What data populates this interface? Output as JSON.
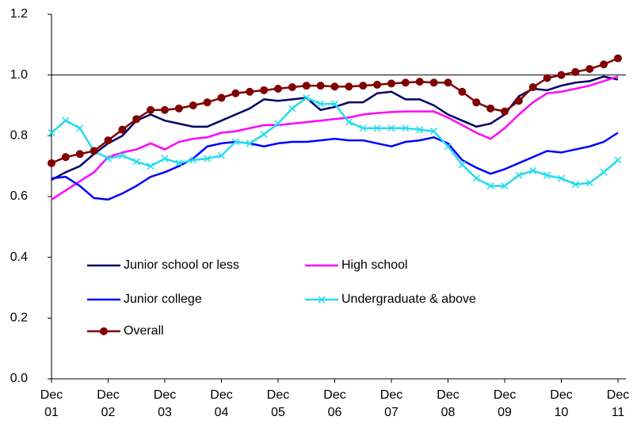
{
  "chart_data": {
    "type": "line",
    "categories": [
      "Dec 01",
      null,
      null,
      null,
      "Dec 02",
      null,
      null,
      null,
      "Dec 03",
      null,
      null,
      null,
      "Dec 04",
      null,
      null,
      null,
      "Dec 05",
      null,
      null,
      null,
      "Dec 06",
      null,
      null,
      null,
      "Dec 07",
      null,
      null,
      null,
      "Dec 08",
      null,
      null,
      null,
      "Dec 09",
      null,
      null,
      null,
      "Dec 10",
      null,
      null,
      null,
      "Dec 11"
    ],
    "series": [
      {
        "name": "Junior school or less",
        "color": "#000066",
        "marker": "none",
        "values": [
          0.655,
          0.68,
          0.7,
          0.74,
          0.775,
          0.8,
          0.85,
          0.87,
          0.85,
          0.84,
          0.83,
          0.83,
          0.85,
          0.87,
          0.89,
          0.92,
          0.915,
          0.92,
          0.925,
          0.885,
          0.895,
          0.91,
          0.91,
          0.94,
          0.945,
          0.92,
          0.92,
          0.9,
          0.87,
          0.85,
          0.83,
          0.84,
          0.87,
          0.93,
          0.955,
          0.95,
          0.965,
          0.975,
          0.98,
          0.995,
          0.985
        ]
      },
      {
        "name": "High school",
        "color": "#ff00ff",
        "marker": "none",
        "values": [
          0.59,
          0.62,
          0.65,
          0.68,
          0.73,
          0.745,
          0.755,
          0.775,
          0.755,
          0.78,
          0.79,
          0.795,
          0.81,
          0.815,
          0.825,
          0.835,
          0.835,
          0.84,
          0.845,
          0.85,
          0.855,
          0.86,
          0.87,
          0.875,
          0.878,
          0.88,
          0.88,
          0.88,
          0.86,
          0.835,
          0.81,
          0.79,
          0.825,
          0.87,
          0.91,
          0.94,
          0.945,
          0.955,
          0.965,
          0.98,
          0.995
        ]
      },
      {
        "name": "Junior college",
        "color": "#0000ff",
        "marker": "none",
        "values": [
          0.66,
          0.665,
          0.635,
          0.595,
          0.59,
          0.61,
          0.635,
          0.665,
          0.68,
          0.7,
          0.725,
          0.765,
          0.775,
          0.78,
          0.775,
          0.765,
          0.775,
          0.78,
          0.78,
          0.785,
          0.79,
          0.785,
          0.785,
          0.775,
          0.765,
          0.78,
          0.785,
          0.795,
          0.775,
          0.72,
          0.695,
          0.675,
          0.69,
          0.71,
          0.73,
          0.75,
          0.745,
          0.755,
          0.765,
          0.78,
          0.81
        ]
      },
      {
        "name": "Undergraduate & above",
        "color": "#22ddee",
        "marker": "x",
        "values": [
          0.81,
          0.85,
          0.825,
          0.75,
          0.725,
          0.735,
          0.715,
          0.7,
          0.725,
          0.71,
          0.72,
          0.725,
          0.735,
          0.78,
          0.775,
          0.805,
          0.84,
          0.89,
          0.925,
          0.905,
          0.905,
          0.845,
          0.825,
          0.825,
          0.825,
          0.825,
          0.82,
          0.815,
          0.765,
          0.705,
          0.66,
          0.635,
          0.635,
          0.67,
          0.685,
          0.67,
          0.66,
          0.64,
          0.645,
          0.68,
          0.72
        ]
      },
      {
        "name": "Overall",
        "color": "#800000",
        "marker": "circle",
        "values": [
          0.71,
          0.73,
          0.74,
          0.75,
          0.785,
          0.82,
          0.855,
          0.885,
          0.885,
          0.89,
          0.9,
          0.91,
          0.925,
          0.94,
          0.945,
          0.95,
          0.955,
          0.96,
          0.965,
          0.965,
          0.962,
          0.962,
          0.965,
          0.968,
          0.972,
          0.975,
          0.978,
          0.975,
          0.975,
          0.945,
          0.91,
          0.89,
          0.88,
          0.915,
          0.96,
          0.99,
          1.0,
          1.01,
          1.02,
          1.035,
          1.055
        ]
      }
    ],
    "ylim": [
      0,
      1.2
    ],
    "yticks": [
      {
        "value": 0,
        "label": "0.0"
      },
      0.2,
      0.4,
      0.6,
      0.8,
      {
        "value": 1,
        "label": "1.0"
      },
      1.2
    ],
    "reference_line": 1,
    "grid": false
  }
}
